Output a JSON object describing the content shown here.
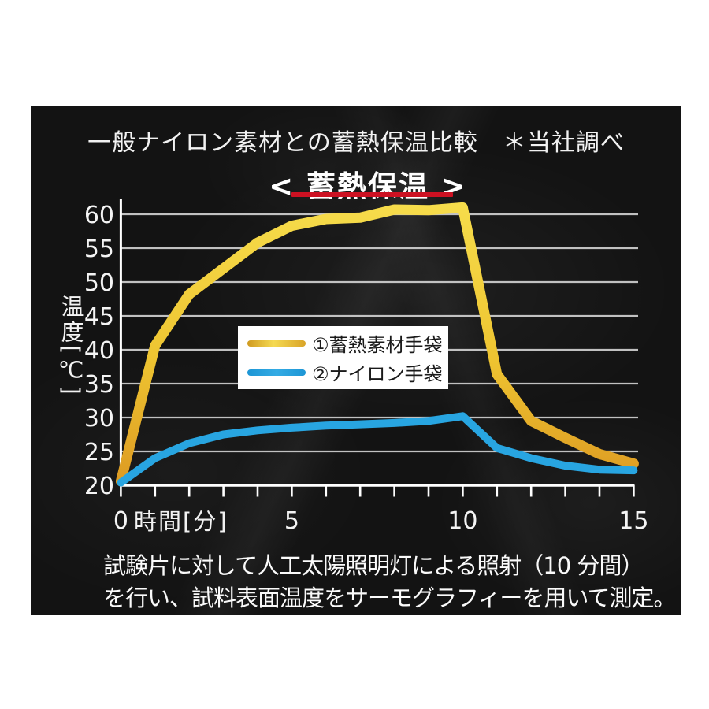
{
  "page": {
    "background": "#ffffff",
    "panel_background": "#131313"
  },
  "header": {
    "title": "一般ナイロン素材との蓄熱保温比較　＊当社調べ",
    "subtitle": "< 蓄熱保温 >",
    "underline_color": "#cc1122"
  },
  "chart_data": {
    "type": "line",
    "x": [
      0,
      1,
      2,
      3,
      4,
      5,
      6,
      7,
      8,
      9,
      10,
      11,
      12,
      13,
      14,
      15
    ],
    "series": [
      {
        "name": "①蓄熱素材手袋",
        "values": [
          20.6,
          40.6,
          48.2,
          52.0,
          55.8,
          58.3,
          59.3,
          59.5,
          60.7,
          60.6,
          61.0,
          36.4,
          29.5,
          27.0,
          24.6,
          23.2
        ],
        "gradient": [
          "#f6dc4b",
          "#eec431",
          "#dd9a22"
        ],
        "line_width": 13
      },
      {
        "name": "②ナイロン手袋",
        "values": [
          20.4,
          24.0,
          26.2,
          27.5,
          28.1,
          28.5,
          28.8,
          29.0,
          29.2,
          29.5,
          30.2,
          25.5,
          24.0,
          22.9,
          22.3,
          22.2
        ],
        "color": "#28a5e1",
        "line_width": 10
      }
    ],
    "xlabel": "時間[分]",
    "ylabel": "温度[℃]",
    "xlim": [
      0,
      15
    ],
    "ylim": [
      20,
      62
    ],
    "yticks": [
      20,
      25,
      30,
      35,
      40,
      45,
      50,
      55,
      60
    ],
    "xticks": [
      0,
      1,
      2,
      3,
      4,
      5,
      6,
      7,
      8,
      9,
      10,
      11,
      12,
      13,
      14,
      15
    ],
    "xtick_labels": [
      {
        "x": 0,
        "label": "0"
      },
      {
        "x": 5,
        "label": "5"
      },
      {
        "x": 10,
        "label": "10"
      },
      {
        "x": 15,
        "label": "15"
      }
    ],
    "grid": "horizontal",
    "grid_color": "#d9d9d9",
    "axis_color": "#ffffff",
    "legend_position": "center-left-inside"
  },
  "caption": {
    "line1": "試験片に対して人工太陽照明灯による照射（10 分間）",
    "line2": "を行い、試料表面温度をサーモグラフィーを用いて測定。"
  }
}
